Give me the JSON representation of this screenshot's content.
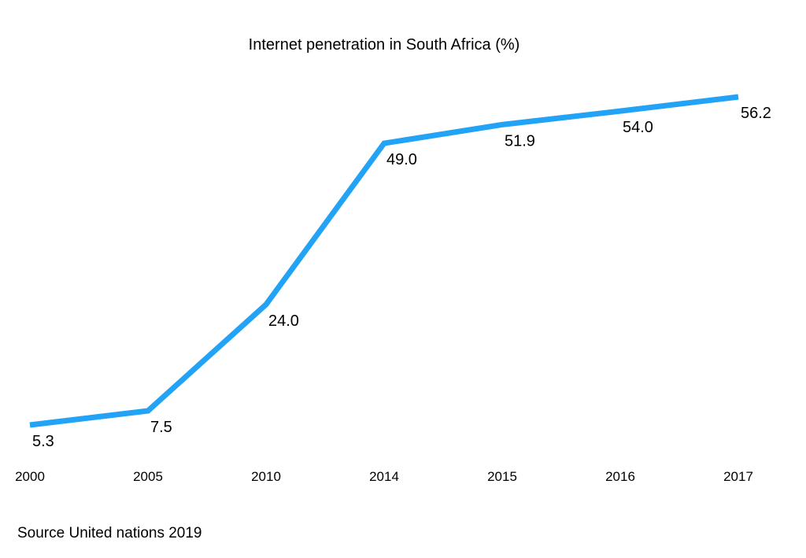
{
  "chart_data": {
    "type": "line",
    "title": "Internet penetration in South Africa (%)",
    "categories": [
      "2000",
      "2005",
      "2010",
      "2014",
      "2015",
      "2016",
      "2017"
    ],
    "series": [
      {
        "values": [
          5.3,
          7.5,
          24.0,
          49.0,
          51.9,
          54.0,
          56.2
        ],
        "labels": [
          "5.3",
          "7.5",
          "24.0",
          "49.0",
          "51.9",
          "54.0",
          "56.2"
        ],
        "color": "#22A3F5"
      }
    ],
    "xlabel": "",
    "ylabel": "",
    "grid": false,
    "axes_visible": false,
    "data_labels": true
  },
  "source": "Source United nations 2019"
}
